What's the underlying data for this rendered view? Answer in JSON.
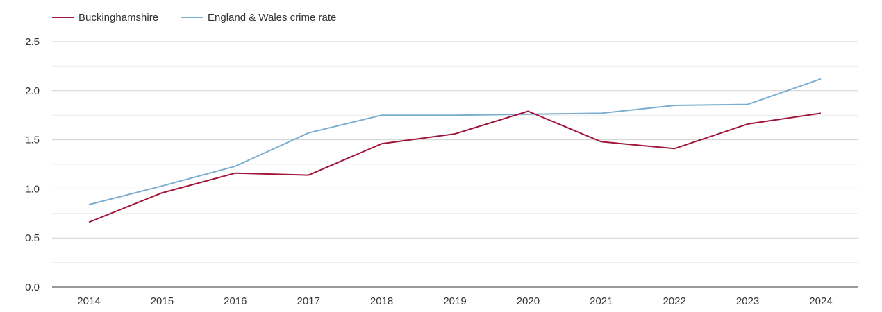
{
  "chart_data": {
    "type": "line",
    "title": "",
    "xlabel": "",
    "ylabel": "",
    "x": [
      "2014",
      "2015",
      "2016",
      "2017",
      "2018",
      "2019",
      "2020",
      "2021",
      "2022",
      "2023",
      "2024"
    ],
    "ylim": [
      0,
      2.5
    ],
    "yticks": [
      "0.0",
      "0.5",
      "1.0",
      "1.5",
      "2.0",
      "2.5"
    ],
    "grid": true,
    "legend_position": "top-left",
    "series": [
      {
        "name": "Buckinghamshire",
        "color": "#a0163a",
        "values": [
          0.66,
          0.96,
          1.16,
          1.14,
          1.46,
          1.56,
          1.79,
          1.48,
          1.41,
          1.66,
          1.77
        ]
      },
      {
        "name": "England & Wales crime rate",
        "color": "#7aaed0",
        "values": [
          0.84,
          1.03,
          1.23,
          1.57,
          1.75,
          1.75,
          1.76,
          1.77,
          1.85,
          1.86,
          2.12
        ]
      }
    ]
  }
}
